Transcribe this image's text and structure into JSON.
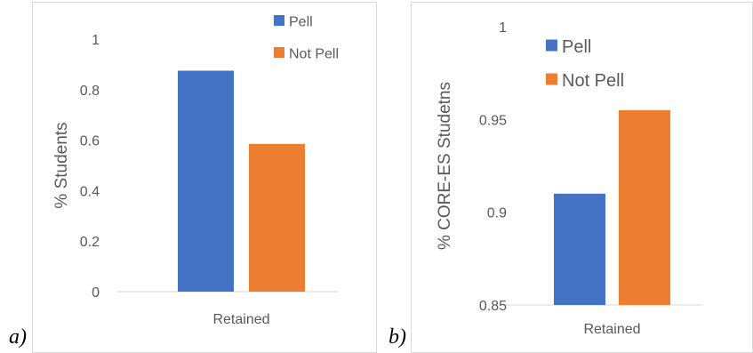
{
  "chart_data": [
    {
      "panel_label": "a)",
      "type": "bar",
      "categories": [
        "Retained"
      ],
      "series": [
        {
          "name": "Pell",
          "values": [
            0.875
          ],
          "color": "#4472C4"
        },
        {
          "name": "Not Pell",
          "values": [
            0.585
          ],
          "color": "#ED7D31"
        }
      ],
      "title": "",
      "xlabel": "",
      "ylabel": "% Students",
      "ylim": [
        0,
        1
      ],
      "yticks": [
        "0",
        "0.2",
        "0.4",
        "0.6",
        "0.8",
        "1"
      ],
      "grid": false,
      "legend": "top-right"
    },
    {
      "panel_label": "b)",
      "type": "bar",
      "categories": [
        "Retained"
      ],
      "series": [
        {
          "name": "Pell",
          "values": [
            0.91
          ],
          "color": "#4472C4"
        },
        {
          "name": "Not Pell",
          "values": [
            0.955
          ],
          "color": "#ED7D31"
        }
      ],
      "title": "",
      "xlabel": "",
      "ylabel": "% CORE-ES Studetns",
      "ylim": [
        0.85,
        1
      ],
      "yticks": [
        "0.85",
        "0.9",
        "0.95",
        "1"
      ],
      "grid": false,
      "legend": "top-left"
    }
  ]
}
